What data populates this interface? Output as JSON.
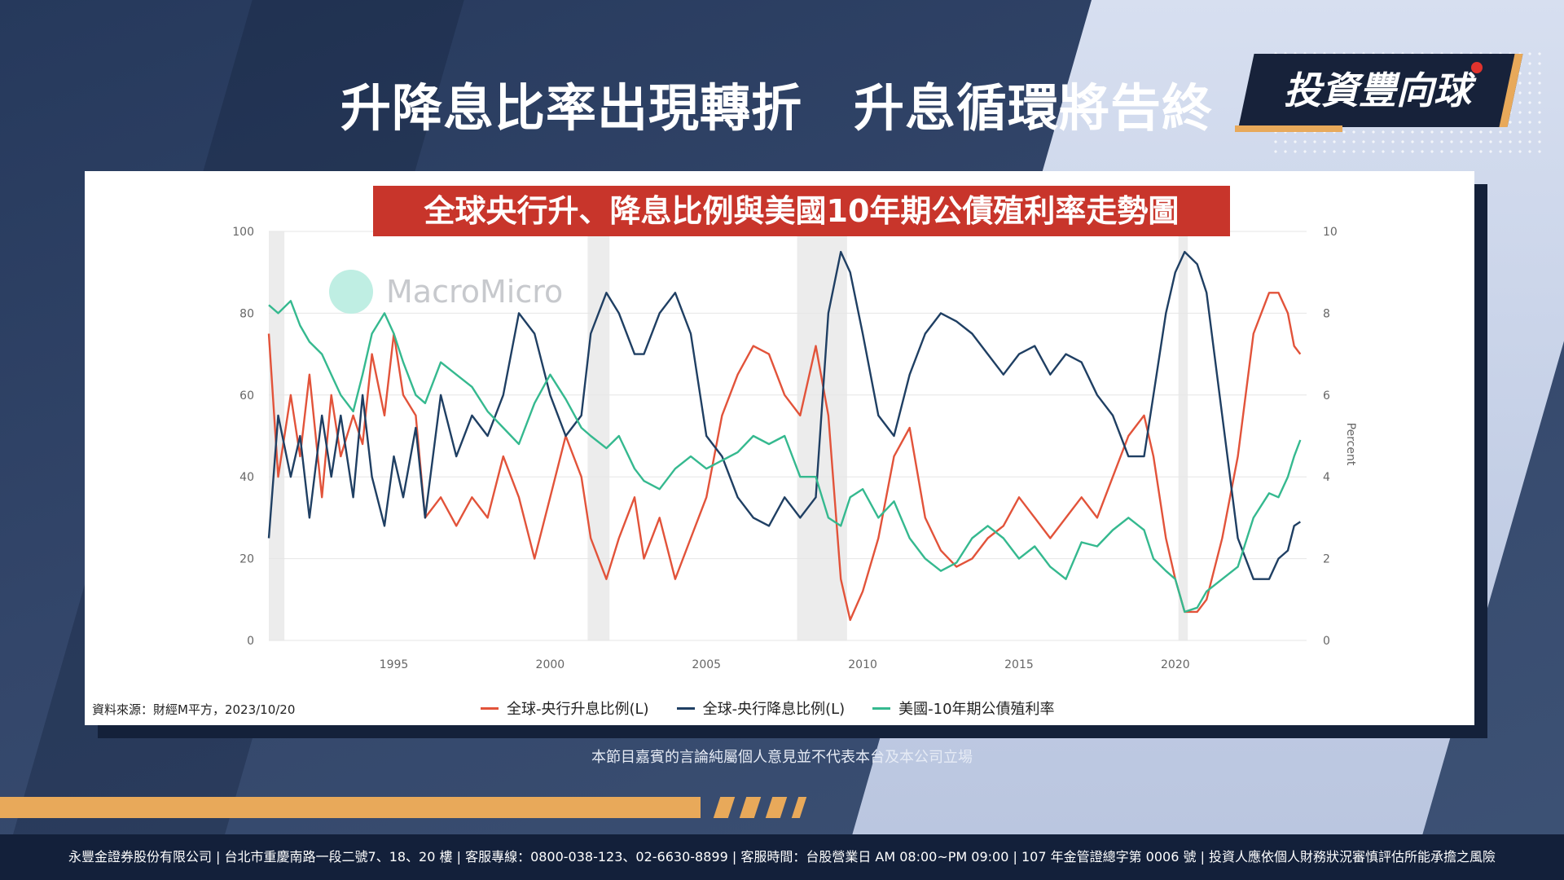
{
  "header": {
    "title": "升降息比率出現轉折　升息循環將告終",
    "logo_text": "投資豐向球"
  },
  "chart_title": "全球央行升、降息比例與美國10年期公債殖利率走勢圖",
  "watermark": "MacroMicro",
  "source": "資料來源：財經M平方，2023/10/20",
  "disclaimer": "本節目嘉賓的言論純屬個人意見並不代表本台及本公司立場",
  "footer": "永豐金證券股份有限公司 | 台北市重慶南路一段二號7、18、20 樓 | 客服專線：0800-038-123、02-6630-8899 | 客服時間：台股營業日 AM 08:00~PM 09:00 | 107 年金管證總字第 0006 號 | 投資人應依個人財務狀況審慎評估所能承擔之風險",
  "colors": {
    "hike": "#e2533a",
    "cut": "#1f3f63",
    "yield": "#35b98f",
    "title_bg": "#c8352b",
    "accent": "#e8a95a",
    "recession": "#ececec"
  },
  "chart_data": {
    "type": "line",
    "x_ticks": [
      1995,
      2000,
      2005,
      2010,
      2015,
      2020
    ],
    "y_left": {
      "min": 0,
      "max": 100,
      "ticks": [
        0,
        20,
        40,
        60,
        80,
        100
      ]
    },
    "y_right": {
      "min": 0,
      "max": 10,
      "ticks": [
        0,
        2,
        4,
        6,
        8,
        10
      ],
      "label": "Percent"
    },
    "recessions": [
      [
        1991.0,
        1991.5
      ],
      [
        2001.2,
        2001.9
      ],
      [
        2007.9,
        2009.5
      ],
      [
        2020.1,
        2020.4
      ]
    ],
    "series": [
      {
        "name": "全球-央行升息比例(L)",
        "axis": "left",
        "points": [
          [
            1991.0,
            75
          ],
          [
            1991.3,
            40
          ],
          [
            1991.7,
            60
          ],
          [
            1992.0,
            45
          ],
          [
            1992.3,
            65
          ],
          [
            1992.7,
            35
          ],
          [
            1993.0,
            60
          ],
          [
            1993.3,
            45
          ],
          [
            1993.7,
            55
          ],
          [
            1994.0,
            48
          ],
          [
            1994.3,
            70
          ],
          [
            1994.7,
            55
          ],
          [
            1995.0,
            75
          ],
          [
            1995.3,
            60
          ],
          [
            1995.7,
            55
          ],
          [
            1996.0,
            30
          ],
          [
            1996.5,
            35
          ],
          [
            1997.0,
            28
          ],
          [
            1997.5,
            35
          ],
          [
            1998.0,
            30
          ],
          [
            1998.5,
            45
          ],
          [
            1999.0,
            35
          ],
          [
            1999.5,
            20
          ],
          [
            2000.0,
            35
          ],
          [
            2000.5,
            50
          ],
          [
            2001.0,
            40
          ],
          [
            2001.3,
            25
          ],
          [
            2001.8,
            15
          ],
          [
            2002.2,
            25
          ],
          [
            2002.7,
            35
          ],
          [
            2003.0,
            20
          ],
          [
            2003.5,
            30
          ],
          [
            2004.0,
            15
          ],
          [
            2004.5,
            25
          ],
          [
            2005.0,
            35
          ],
          [
            2005.5,
            55
          ],
          [
            2006.0,
            65
          ],
          [
            2006.5,
            72
          ],
          [
            2007.0,
            70
          ],
          [
            2007.5,
            60
          ],
          [
            2008.0,
            55
          ],
          [
            2008.5,
            72
          ],
          [
            2008.9,
            55
          ],
          [
            2009.3,
            15
          ],
          [
            2009.6,
            5
          ],
          [
            2010.0,
            12
          ],
          [
            2010.5,
            25
          ],
          [
            2011.0,
            45
          ],
          [
            2011.5,
            52
          ],
          [
            2012.0,
            30
          ],
          [
            2012.5,
            22
          ],
          [
            2013.0,
            18
          ],
          [
            2013.5,
            20
          ],
          [
            2014.0,
            25
          ],
          [
            2014.5,
            28
          ],
          [
            2015.0,
            35
          ],
          [
            2015.5,
            30
          ],
          [
            2016.0,
            25
          ],
          [
            2016.5,
            30
          ],
          [
            2017.0,
            35
          ],
          [
            2017.5,
            30
          ],
          [
            2018.0,
            40
          ],
          [
            2018.5,
            50
          ],
          [
            2019.0,
            55
          ],
          [
            2019.3,
            45
          ],
          [
            2019.7,
            25
          ],
          [
            2020.0,
            15
          ],
          [
            2020.3,
            7
          ],
          [
            2020.7,
            7
          ],
          [
            2021.0,
            10
          ],
          [
            2021.5,
            25
          ],
          [
            2022.0,
            45
          ],
          [
            2022.5,
            75
          ],
          [
            2023.0,
            85
          ],
          [
            2023.3,
            85
          ],
          [
            2023.6,
            80
          ],
          [
            2023.8,
            72
          ],
          [
            2024.0,
            70
          ]
        ]
      },
      {
        "name": "全球-央行降息比例(L)",
        "axis": "left",
        "points": [
          [
            1991.0,
            25
          ],
          [
            1991.3,
            55
          ],
          [
            1991.7,
            40
          ],
          [
            1992.0,
            50
          ],
          [
            1992.3,
            30
          ],
          [
            1992.7,
            55
          ],
          [
            1993.0,
            40
          ],
          [
            1993.3,
            55
          ],
          [
            1993.7,
            35
          ],
          [
            1994.0,
            60
          ],
          [
            1994.3,
            40
          ],
          [
            1994.7,
            28
          ],
          [
            1995.0,
            45
          ],
          [
            1995.3,
            35
          ],
          [
            1995.7,
            52
          ],
          [
            1996.0,
            30
          ],
          [
            1996.5,
            60
          ],
          [
            1997.0,
            45
          ],
          [
            1997.5,
            55
          ],
          [
            1998.0,
            50
          ],
          [
            1998.5,
            60
          ],
          [
            1999.0,
            80
          ],
          [
            1999.5,
            75
          ],
          [
            2000.0,
            60
          ],
          [
            2000.5,
            50
          ],
          [
            2001.0,
            55
          ],
          [
            2001.3,
            75
          ],
          [
            2001.8,
            85
          ],
          [
            2002.2,
            80
          ],
          [
            2002.7,
            70
          ],
          [
            2003.0,
            70
          ],
          [
            2003.5,
            80
          ],
          [
            2004.0,
            85
          ],
          [
            2004.5,
            75
          ],
          [
            2005.0,
            50
          ],
          [
            2005.5,
            45
          ],
          [
            2006.0,
            35
          ],
          [
            2006.5,
            30
          ],
          [
            2007.0,
            28
          ],
          [
            2007.5,
            35
          ],
          [
            2008.0,
            30
          ],
          [
            2008.5,
            35
          ],
          [
            2008.9,
            80
          ],
          [
            2009.3,
            95
          ],
          [
            2009.6,
            90
          ],
          [
            2010.0,
            75
          ],
          [
            2010.5,
            55
          ],
          [
            2011.0,
            50
          ],
          [
            2011.5,
            65
          ],
          [
            2012.0,
            75
          ],
          [
            2012.5,
            80
          ],
          [
            2013.0,
            78
          ],
          [
            2013.5,
            75
          ],
          [
            2014.0,
            70
          ],
          [
            2014.5,
            65
          ],
          [
            2015.0,
            70
          ],
          [
            2015.5,
            72
          ],
          [
            2016.0,
            65
          ],
          [
            2016.5,
            70
          ],
          [
            2017.0,
            68
          ],
          [
            2017.5,
            60
          ],
          [
            2018.0,
            55
          ],
          [
            2018.5,
            45
          ],
          [
            2019.0,
            45
          ],
          [
            2019.3,
            60
          ],
          [
            2019.7,
            80
          ],
          [
            2020.0,
            90
          ],
          [
            2020.3,
            95
          ],
          [
            2020.7,
            92
          ],
          [
            2021.0,
            85
          ],
          [
            2021.5,
            55
          ],
          [
            2022.0,
            25
          ],
          [
            2022.5,
            15
          ],
          [
            2023.0,
            15
          ],
          [
            2023.3,
            20
          ],
          [
            2023.6,
            22
          ],
          [
            2023.8,
            28
          ],
          [
            2024.0,
            29
          ]
        ]
      },
      {
        "name": "美國-10年期公債殖利率",
        "axis": "right",
        "points": [
          [
            1991.0,
            8.2
          ],
          [
            1991.3,
            8.0
          ],
          [
            1991.7,
            8.3
          ],
          [
            1992.0,
            7.7
          ],
          [
            1992.3,
            7.3
          ],
          [
            1992.7,
            7.0
          ],
          [
            1993.0,
            6.5
          ],
          [
            1993.3,
            6.0
          ],
          [
            1993.7,
            5.6
          ],
          [
            1994.0,
            6.5
          ],
          [
            1994.3,
            7.5
          ],
          [
            1994.7,
            8.0
          ],
          [
            1995.0,
            7.5
          ],
          [
            1995.3,
            6.8
          ],
          [
            1995.7,
            6.0
          ],
          [
            1996.0,
            5.8
          ],
          [
            1996.5,
            6.8
          ],
          [
            1997.0,
            6.5
          ],
          [
            1997.5,
            6.2
          ],
          [
            1998.0,
            5.6
          ],
          [
            1998.5,
            5.2
          ],
          [
            1999.0,
            4.8
          ],
          [
            1999.5,
            5.8
          ],
          [
            2000.0,
            6.5
          ],
          [
            2000.5,
            5.9
          ],
          [
            2001.0,
            5.2
          ],
          [
            2001.3,
            5.0
          ],
          [
            2001.8,
            4.7
          ],
          [
            2002.2,
            5.0
          ],
          [
            2002.7,
            4.2
          ],
          [
            2003.0,
            3.9
          ],
          [
            2003.5,
            3.7
          ],
          [
            2004.0,
            4.2
          ],
          [
            2004.5,
            4.5
          ],
          [
            2005.0,
            4.2
          ],
          [
            2005.5,
            4.4
          ],
          [
            2006.0,
            4.6
          ],
          [
            2006.5,
            5.0
          ],
          [
            2007.0,
            4.8
          ],
          [
            2007.5,
            5.0
          ],
          [
            2008.0,
            4.0
          ],
          [
            2008.5,
            4.0
          ],
          [
            2008.9,
            3.0
          ],
          [
            2009.3,
            2.8
          ],
          [
            2009.6,
            3.5
          ],
          [
            2010.0,
            3.7
          ],
          [
            2010.5,
            3.0
          ],
          [
            2011.0,
            3.4
          ],
          [
            2011.5,
            2.5
          ],
          [
            2012.0,
            2.0
          ],
          [
            2012.5,
            1.7
          ],
          [
            2013.0,
            1.9
          ],
          [
            2013.5,
            2.5
          ],
          [
            2014.0,
            2.8
          ],
          [
            2014.5,
            2.5
          ],
          [
            2015.0,
            2.0
          ],
          [
            2015.5,
            2.3
          ],
          [
            2016.0,
            1.8
          ],
          [
            2016.5,
            1.5
          ],
          [
            2017.0,
            2.4
          ],
          [
            2017.5,
            2.3
          ],
          [
            2018.0,
            2.7
          ],
          [
            2018.5,
            3.0
          ],
          [
            2019.0,
            2.7
          ],
          [
            2019.3,
            2.0
          ],
          [
            2019.7,
            1.7
          ],
          [
            2020.0,
            1.5
          ],
          [
            2020.3,
            0.7
          ],
          [
            2020.7,
            0.8
          ],
          [
            2021.0,
            1.2
          ],
          [
            2021.5,
            1.5
          ],
          [
            2022.0,
            1.8
          ],
          [
            2022.5,
            3.0
          ],
          [
            2023.0,
            3.6
          ],
          [
            2023.3,
            3.5
          ],
          [
            2023.6,
            4.0
          ],
          [
            2023.8,
            4.5
          ],
          [
            2024.0,
            4.9
          ]
        ]
      }
    ]
  }
}
